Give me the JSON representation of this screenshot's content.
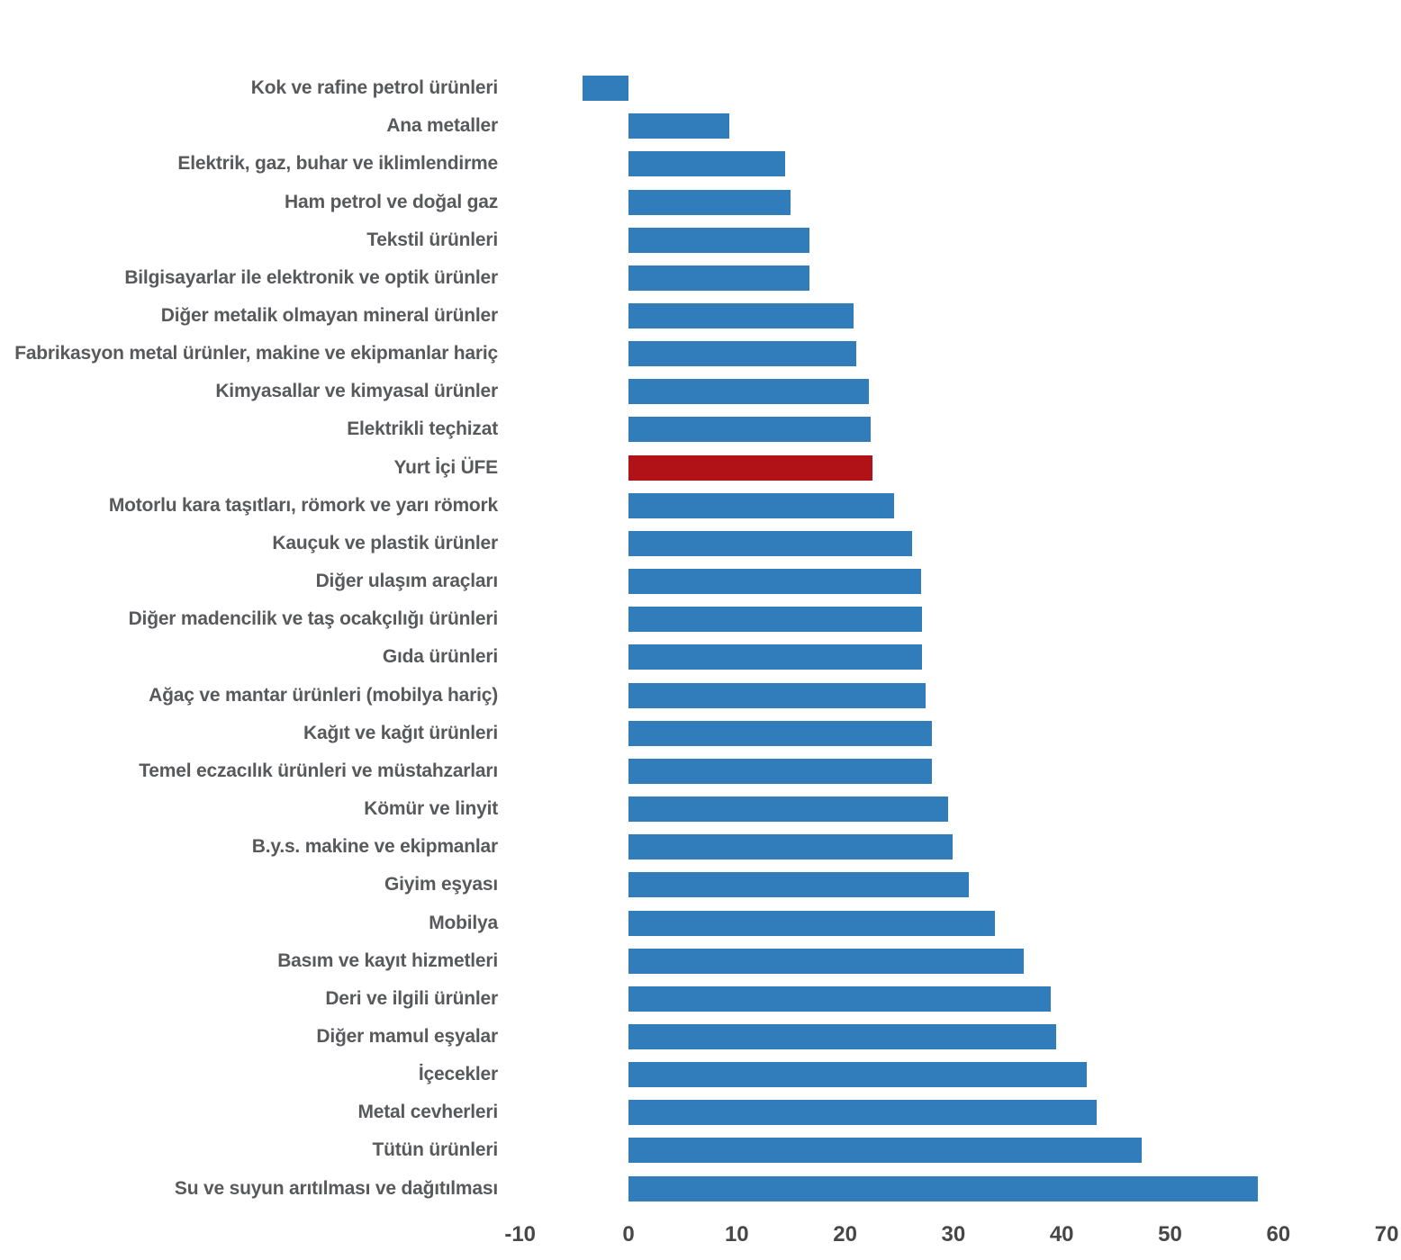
{
  "chart_data": {
    "type": "bar",
    "orientation": "horizontal",
    "title": "",
    "xlabel": "",
    "ylabel": "",
    "grid": false,
    "legend": false,
    "categories": [
      "Kok ve rafine petrol ürünleri",
      "Ana metaller",
      "Elektrik, gaz, buhar ve iklimlendirme",
      "Ham petrol ve doğal gaz",
      "Tekstil ürünleri",
      "Bilgisayarlar ile elektronik ve optik ürünler",
      "Diğer metalik olmayan mineral ürünler",
      "Fabrikasyon metal ürünler, makine ve ekipmanlar hariç",
      "Kimyasallar ve kimyasal ürünler",
      "Elektrikli teçhizat",
      "Yurt İçi ÜFE",
      "Motorlu kara taşıtları, römork ve yarı römork",
      "Kauçuk ve plastik ürünler",
      "Diğer ulaşım araçları",
      "Diğer madencilik ve taş ocakçılığı ürünleri",
      "Gıda ürünleri",
      "Ağaç ve mantar ürünleri (mobilya hariç)",
      "Kağıt ve kağıt ürünleri",
      "Temel eczacılık ürünleri ve müstahzarları",
      "Kömür ve linyit",
      "B.y.s. makine ve ekipmanlar",
      "Giyim eşyası",
      "Mobilya",
      "Basım ve kayıt hizmetleri",
      "Deri ve ilgili ürünler",
      "Diğer mamul eşyalar",
      "İçecekler",
      "Metal cevherleri",
      "Tütün ürünleri",
      "Su ve suyun arıtılması ve dağıtılması"
    ],
    "values": [
      -4.2,
      9.3,
      14.5,
      15.0,
      16.7,
      16.7,
      20.8,
      21.0,
      22.2,
      22.4,
      22.5,
      24.5,
      26.2,
      27.0,
      27.1,
      27.1,
      27.4,
      28.0,
      28.0,
      29.5,
      29.9,
      31.4,
      33.8,
      36.5,
      39.0,
      39.5,
      42.3,
      43.2,
      47.4,
      58.1
    ],
    "highlight_category": "Yurt İçi ÜFE",
    "highlight_index": 10,
    "bar_color": "#317DBC",
    "highlight_color": "#B01218",
    "x_axis": {
      "min": -10,
      "max": 70,
      "tick_step": 10,
      "tick_values": [
        -10,
        0,
        10,
        20,
        30,
        40,
        50,
        60,
        70
      ],
      "tick_labels": [
        "-10",
        "0",
        "10",
        "20",
        "30",
        "40",
        "50",
        "60",
        "70"
      ]
    }
  },
  "colors": {
    "background": "#FFFFFF",
    "category_label_text": "#58595B",
    "axis_tick_text": "#474747"
  }
}
